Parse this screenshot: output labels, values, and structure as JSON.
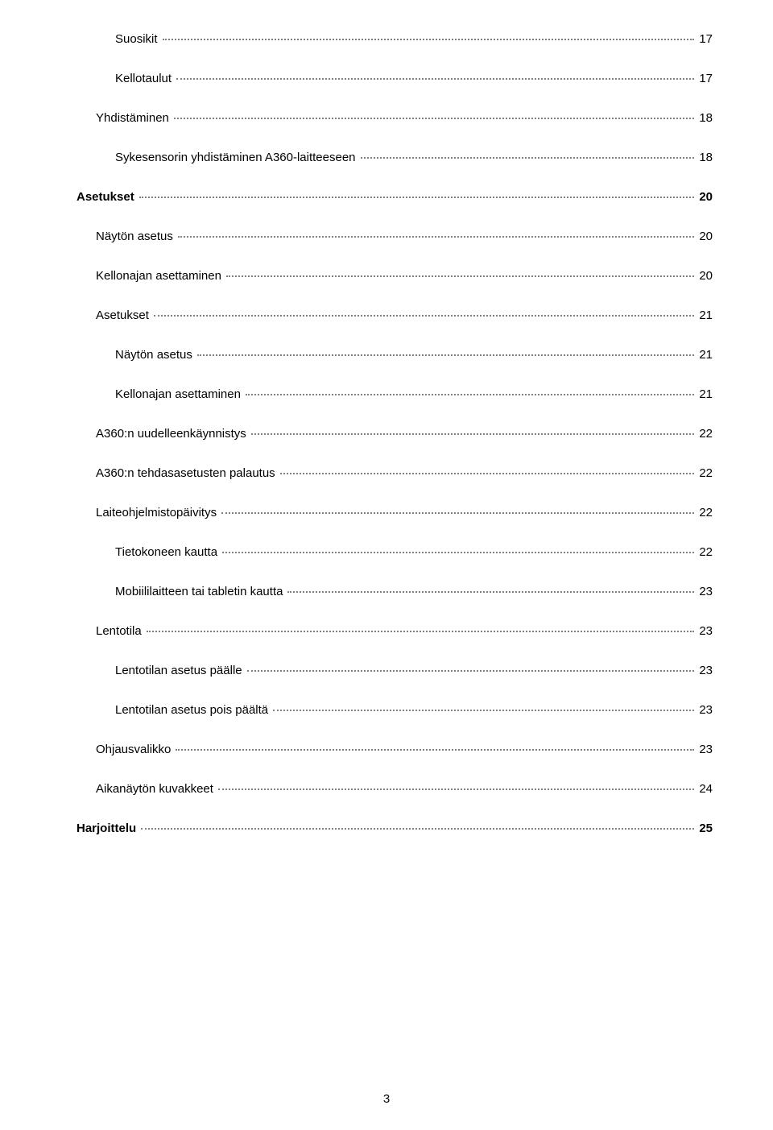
{
  "toc": {
    "entries": [
      {
        "label": "Suosikit",
        "page": "17",
        "indent": 2,
        "bold": false
      },
      {
        "label": "Kellotaulut",
        "page": "17",
        "indent": 2,
        "bold": false
      },
      {
        "label": "Yhdistäminen",
        "page": "18",
        "indent": 1,
        "bold": false
      },
      {
        "label": "Sykesensorin yhdistäminen A360-laitteeseen",
        "page": "18",
        "indent": 2,
        "bold": false
      },
      {
        "label": "Asetukset",
        "page": "20",
        "indent": 0,
        "bold": true
      },
      {
        "label": "Näytön asetus",
        "page": "20",
        "indent": 1,
        "bold": false
      },
      {
        "label": "Kellonajan asettaminen",
        "page": "20",
        "indent": 1,
        "bold": false
      },
      {
        "label": "Asetukset",
        "page": "21",
        "indent": 1,
        "bold": false
      },
      {
        "label": "Näytön asetus",
        "page": "21",
        "indent": 2,
        "bold": false
      },
      {
        "label": "Kellonajan asettaminen",
        "page": "21",
        "indent": 2,
        "bold": false
      },
      {
        "label": "A360:n uudelleenkäynnistys",
        "page": "22",
        "indent": 1,
        "bold": false
      },
      {
        "label": "A360:n tehdasasetusten palautus",
        "page": "22",
        "indent": 1,
        "bold": false
      },
      {
        "label": "Laiteohjelmistopäivitys",
        "page": "22",
        "indent": 1,
        "bold": false
      },
      {
        "label": "Tietokoneen kautta",
        "page": "22",
        "indent": 2,
        "bold": false
      },
      {
        "label": "Mobiililaitteen tai tabletin kautta",
        "page": "23",
        "indent": 2,
        "bold": false
      },
      {
        "label": "Lentotila",
        "page": "23",
        "indent": 1,
        "bold": false
      },
      {
        "label": "Lentotilan asetus päälle",
        "page": "23",
        "indent": 2,
        "bold": false
      },
      {
        "label": "Lentotilan asetus pois päältä",
        "page": "23",
        "indent": 2,
        "bold": false
      },
      {
        "label": "Ohjausvalikko",
        "page": "23",
        "indent": 1,
        "bold": false
      },
      {
        "label": "Aikanäytön kuvakkeet",
        "page": "24",
        "indent": 1,
        "bold": false
      },
      {
        "label": "Harjoittelu",
        "page": "25",
        "indent": 0,
        "bold": true
      }
    ]
  },
  "pageNumber": "3"
}
